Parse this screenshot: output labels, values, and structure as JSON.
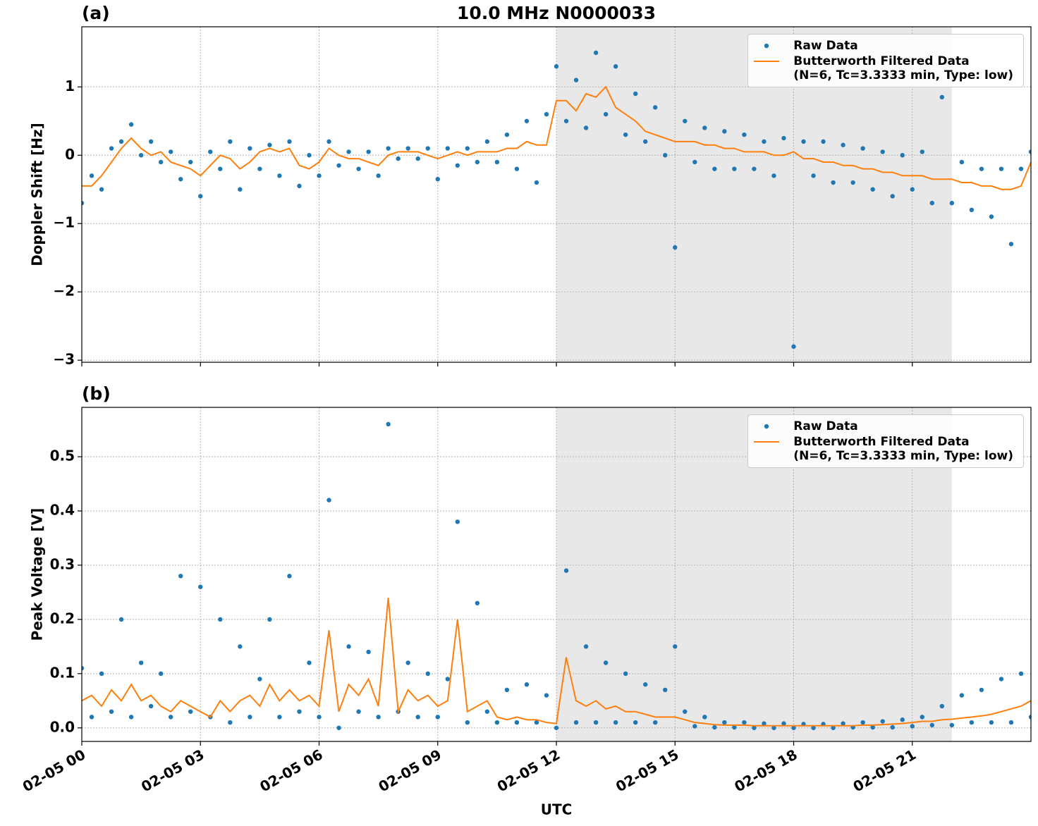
{
  "chart_data": [
    {
      "type": "scatter_line",
      "title": "10.0 MHz N0000033",
      "panel_label": "(a)",
      "ylabel": "Doppler Shift [Hz]",
      "xlim": [
        0,
        24
      ],
      "xticks": [
        0,
        3,
        6,
        9,
        12,
        15,
        18,
        21
      ],
      "ylim": [
        -3.03,
        1.88
      ],
      "yticks": [
        {
          "value": 1,
          "label": "1"
        },
        {
          "value": 0,
          "label": "0"
        },
        {
          "value": -1,
          "label": "−1"
        },
        {
          "value": -2,
          "label": "−2"
        },
        {
          "value": -3,
          "label": "−3"
        }
      ],
      "grid": true,
      "legend": "upper right",
      "shaded_span": [
        12,
        22
      ],
      "shade_color": "#e8e8e8",
      "x": [
        0,
        0.25,
        0.5,
        0.75,
        1,
        1.25,
        1.5,
        1.75,
        2,
        2.25,
        2.5,
        2.75,
        3,
        3.25,
        3.5,
        3.75,
        4,
        4.25,
        4.5,
        4.75,
        5,
        5.25,
        5.5,
        5.75,
        6,
        6.25,
        6.5,
        6.75,
        7,
        7.25,
        7.5,
        7.75,
        8,
        8.25,
        8.5,
        8.75,
        9,
        9.25,
        9.5,
        9.75,
        10,
        10.25,
        10.5,
        10.75,
        11,
        11.25,
        11.5,
        11.75,
        12,
        12.25,
        12.5,
        12.75,
        13,
        13.25,
        13.5,
        13.75,
        14,
        14.25,
        14.5,
        14.75,
        15,
        15.25,
        15.5,
        15.75,
        16,
        16.25,
        16.5,
        16.75,
        17,
        17.25,
        17.5,
        17.75,
        18,
        18.25,
        18.5,
        18.75,
        19,
        19.25,
        19.5,
        19.75,
        20,
        20.25,
        20.5,
        20.75,
        21,
        21.25,
        21.5,
        21.75,
        22,
        22.25,
        22.5,
        22.75,
        23,
        23.25,
        23.5,
        23.75,
        24
      ],
      "series": [
        {
          "name": "Raw Data",
          "kind": "points",
          "color": "#1f77b4",
          "values": [
            -0.7,
            -0.3,
            -0.5,
            0.1,
            0.2,
            0.45,
            0.0,
            0.2,
            -0.1,
            0.05,
            -0.35,
            -0.1,
            -0.6,
            0.05,
            -0.2,
            0.2,
            -0.5,
            0.1,
            -0.2,
            0.15,
            -0.3,
            0.2,
            -0.45,
            0.0,
            -0.3,
            0.2,
            -0.15,
            0.05,
            -0.2,
            0.05,
            -0.3,
            0.1,
            -0.05,
            0.1,
            -0.05,
            0.1,
            -0.35,
            0.1,
            -0.15,
            0.1,
            -0.1,
            0.2,
            -0.1,
            0.3,
            -0.2,
            0.5,
            -0.4,
            0.6,
            1.3,
            0.5,
            1.1,
            0.4,
            1.5,
            0.6,
            1.3,
            0.3,
            0.9,
            0.2,
            0.7,
            0.0,
            -1.35,
            0.5,
            -0.1,
            0.4,
            -0.2,
            0.35,
            -0.2,
            0.3,
            -0.2,
            0.2,
            -0.3,
            0.25,
            -2.8,
            0.2,
            -0.3,
            0.2,
            -0.4,
            0.15,
            -0.4,
            0.1,
            -0.5,
            0.05,
            -0.6,
            0.0,
            -0.5,
            0.05,
            -0.7,
            0.85,
            -0.7,
            -0.1,
            -0.8,
            -0.2,
            -0.9,
            -0.2,
            -1.3,
            -0.2,
            0.05
          ]
        },
        {
          "name": "Butterworth Filtered Data\n(N=6, Tc=3.3333 min, Type: low)",
          "kind": "line",
          "color": "#ff7f0e",
          "values": [
            -0.45,
            -0.45,
            -0.3,
            -0.1,
            0.1,
            0.25,
            0.1,
            0.0,
            0.05,
            -0.1,
            -0.15,
            -0.2,
            -0.3,
            -0.15,
            0.0,
            -0.05,
            -0.2,
            -0.1,
            0.05,
            0.1,
            0.05,
            0.1,
            -0.15,
            -0.2,
            -0.1,
            0.1,
            0.0,
            -0.05,
            -0.05,
            -0.1,
            -0.15,
            0.0,
            0.05,
            0.05,
            0.05,
            0.0,
            -0.05,
            0.0,
            0.05,
            0.0,
            0.05,
            0.05,
            0.05,
            0.1,
            0.1,
            0.2,
            0.15,
            0.15,
            0.8,
            0.8,
            0.65,
            0.9,
            0.85,
            1.0,
            0.7,
            0.6,
            0.5,
            0.35,
            0.3,
            0.25,
            0.2,
            0.2,
            0.2,
            0.15,
            0.15,
            0.1,
            0.1,
            0.05,
            0.05,
            0.05,
            0.0,
            0.0,
            0.05,
            -0.05,
            -0.05,
            -0.1,
            -0.1,
            -0.15,
            -0.15,
            -0.2,
            -0.2,
            -0.25,
            -0.25,
            -0.3,
            -0.3,
            -0.3,
            -0.35,
            -0.35,
            -0.35,
            -0.4,
            -0.4,
            -0.45,
            -0.45,
            -0.5,
            -0.5,
            -0.45,
            -0.1
          ]
        }
      ]
    },
    {
      "type": "scatter_line",
      "panel_label": "(b)",
      "ylabel": "Peak Voltage [V]",
      "xlabel": "UTC",
      "xlim": [
        0,
        24
      ],
      "xticks": [
        {
          "value": 0,
          "label": "02-05 00"
        },
        {
          "value": 3,
          "label": "02-05 03"
        },
        {
          "value": 6,
          "label": "02-05 06"
        },
        {
          "value": 9,
          "label": "02-05 09"
        },
        {
          "value": 12,
          "label": "02-05 12"
        },
        {
          "value": 15,
          "label": "02-05 15"
        },
        {
          "value": 18,
          "label": "02-05 18"
        },
        {
          "value": 21,
          "label": "02-05 21"
        }
      ],
      "ylim": [
        -0.025,
        0.591
      ],
      "yticks": [
        {
          "value": 0,
          "label": "0.0"
        },
        0.1,
        0.2,
        0.3,
        0.4,
        0.5
      ],
      "grid": true,
      "legend": "upper right",
      "shaded_span": [
        12,
        22
      ],
      "shade_color": "#e8e8e8",
      "x": [
        0,
        0.25,
        0.5,
        0.75,
        1,
        1.25,
        1.5,
        1.75,
        2,
        2.25,
        2.5,
        2.75,
        3,
        3.25,
        3.5,
        3.75,
        4,
        4.25,
        4.5,
        4.75,
        5,
        5.25,
        5.5,
        5.75,
        6,
        6.25,
        6.5,
        6.75,
        7,
        7.25,
        7.5,
        7.75,
        8,
        8.25,
        8.5,
        8.75,
        9,
        9.25,
        9.5,
        9.75,
        10,
        10.25,
        10.5,
        10.75,
        11,
        11.25,
        11.5,
        11.75,
        12,
        12.25,
        12.5,
        12.75,
        13,
        13.25,
        13.5,
        13.75,
        14,
        14.25,
        14.5,
        14.75,
        15,
        15.25,
        15.5,
        15.75,
        16,
        16.25,
        16.5,
        16.75,
        17,
        17.25,
        17.5,
        17.75,
        18,
        18.25,
        18.5,
        18.75,
        19,
        19.25,
        19.5,
        19.75,
        20,
        20.25,
        20.5,
        20.75,
        21,
        21.25,
        21.5,
        21.75,
        22,
        22.25,
        22.5,
        22.75,
        23,
        23.25,
        23.5,
        23.75,
        24
      ],
      "series": [
        {
          "name": "Raw Data",
          "kind": "points",
          "color": "#1f77b4",
          "values": [
            0.11,
            0.02,
            0.1,
            0.03,
            0.2,
            0.02,
            0.12,
            0.04,
            0.1,
            0.02,
            0.28,
            0.03,
            0.26,
            0.02,
            0.2,
            0.01,
            0.15,
            0.02,
            0.09,
            0.2,
            0.02,
            0.28,
            0.03,
            0.12,
            0.02,
            0.42,
            0.0,
            0.15,
            0.03,
            0.14,
            0.02,
            0.56,
            0.03,
            0.12,
            0.02,
            0.1,
            0.02,
            0.09,
            0.38,
            0.01,
            0.23,
            0.03,
            0.01,
            0.07,
            0.01,
            0.08,
            0.01,
            0.06,
            0.0,
            0.29,
            0.01,
            0.15,
            0.01,
            0.12,
            0.01,
            0.1,
            0.01,
            0.08,
            0.01,
            0.07,
            0.15,
            0.03,
            0.003,
            0.02,
            0.001,
            0.01,
            0.001,
            0.01,
            0.0,
            0.008,
            0.0,
            0.008,
            0.0,
            0.007,
            0.0,
            0.007,
            0.0,
            0.008,
            0.001,
            0.01,
            0.001,
            0.012,
            0.001,
            0.015,
            0.003,
            0.02,
            0.005,
            0.04,
            0.005,
            0.06,
            0.01,
            0.07,
            0.01,
            0.09,
            0.01,
            0.1,
            0.02
          ]
        },
        {
          "name": "Butterworth Filtered Data\n(N=6, Tc=3.3333 min, Type: low)",
          "kind": "line",
          "color": "#ff7f0e",
          "values": [
            0.05,
            0.06,
            0.04,
            0.07,
            0.05,
            0.08,
            0.05,
            0.06,
            0.04,
            0.03,
            0.05,
            0.04,
            0.03,
            0.02,
            0.05,
            0.03,
            0.05,
            0.06,
            0.04,
            0.08,
            0.05,
            0.07,
            0.05,
            0.06,
            0.04,
            0.18,
            0.03,
            0.08,
            0.06,
            0.09,
            0.04,
            0.24,
            0.03,
            0.07,
            0.05,
            0.06,
            0.04,
            0.05,
            0.2,
            0.03,
            0.04,
            0.05,
            0.02,
            0.015,
            0.02,
            0.015,
            0.015,
            0.01,
            0.008,
            0.13,
            0.05,
            0.04,
            0.05,
            0.035,
            0.04,
            0.03,
            0.03,
            0.025,
            0.02,
            0.02,
            0.02,
            0.015,
            0.01,
            0.008,
            0.006,
            0.005,
            0.005,
            0.005,
            0.004,
            0.004,
            0.004,
            0.004,
            0.004,
            0.004,
            0.004,
            0.004,
            0.004,
            0.004,
            0.004,
            0.005,
            0.005,
            0.006,
            0.007,
            0.008,
            0.01,
            0.012,
            0.012,
            0.015,
            0.016,
            0.018,
            0.02,
            0.022,
            0.025,
            0.03,
            0.035,
            0.04,
            0.05
          ]
        }
      ]
    }
  ]
}
